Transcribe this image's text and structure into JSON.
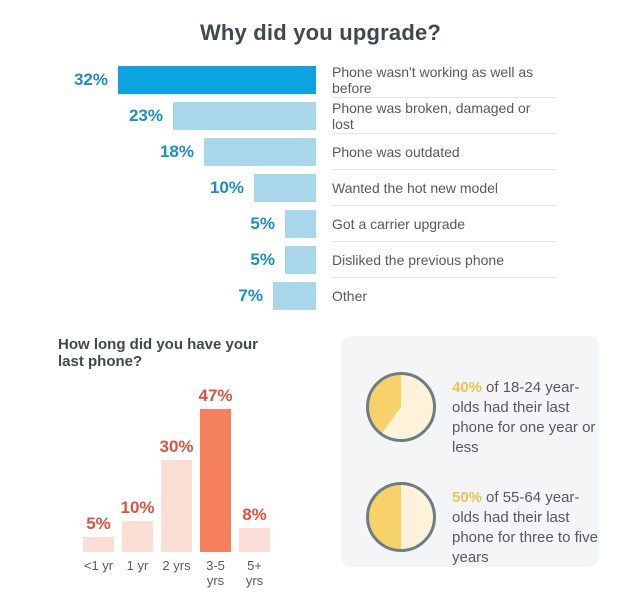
{
  "colors": {
    "accent_blue": "#0da2e0",
    "light_blue": "#a9d6ea",
    "blue_label": "#1b8dc9",
    "text_dark": "#3f4850",
    "text_body": "#55595e",
    "divider": "#e5e5e5",
    "salmon": "#f5805e",
    "salmon_light": "#fbdfd6",
    "red_label": "#e0513f",
    "panel_bg": "#f4f5f6",
    "pie_dark": "#f7d169",
    "pie_light": "#fdf3da",
    "pie_border": "#6e7d82",
    "amber_label": "#eec255"
  },
  "chart_data": [
    {
      "type": "bar",
      "orientation": "horizontal",
      "title": "Why did you upgrade?",
      "unit": "%",
      "categories": [
        "Phone wasn't working as well as before",
        "Phone was broken, damaged or lost",
        "Phone was outdated",
        "Wanted the hot new model",
        "Got a carrier upgrade",
        "Disliked the previous phone",
        "Other"
      ],
      "values": [
        32,
        23,
        18,
        10,
        5,
        5,
        7
      ],
      "value_labels": [
        "32%",
        "23%",
        "18%",
        "10%",
        "5%",
        "5%",
        "7%"
      ],
      "highlight_index": 0,
      "xlim": [
        0,
        50
      ],
      "grid": false,
      "legend": "none"
    },
    {
      "type": "bar",
      "orientation": "vertical",
      "title": "How long did you have your last phone?",
      "unit": "%",
      "categories": [
        "<1 yr",
        "1 yr",
        "2 yrs",
        "3-5 yrs",
        "5+ yrs"
      ],
      "tick_lines": [
        [
          "<1 yr"
        ],
        [
          "1 yr"
        ],
        [
          "2 yrs"
        ],
        [
          "3-5",
          "yrs"
        ],
        [
          "5+",
          "yrs"
        ]
      ],
      "values": [
        5,
        10,
        30,
        47,
        8
      ],
      "value_labels": [
        "5%",
        "10%",
        "30%",
        "47%",
        "8%"
      ],
      "highlight_index": 3,
      "ylim": [
        0,
        50
      ],
      "grid": false,
      "legend": "none"
    },
    {
      "type": "pie",
      "stats": [
        {
          "value": 40,
          "label_pct": "40%",
          "text": "of 18-24 year-olds had their last phone for one year or less"
        },
        {
          "value": 50,
          "label_pct": "50%",
          "text": "of 55-64 year-olds had their last phone for three to five years"
        }
      ]
    }
  ]
}
